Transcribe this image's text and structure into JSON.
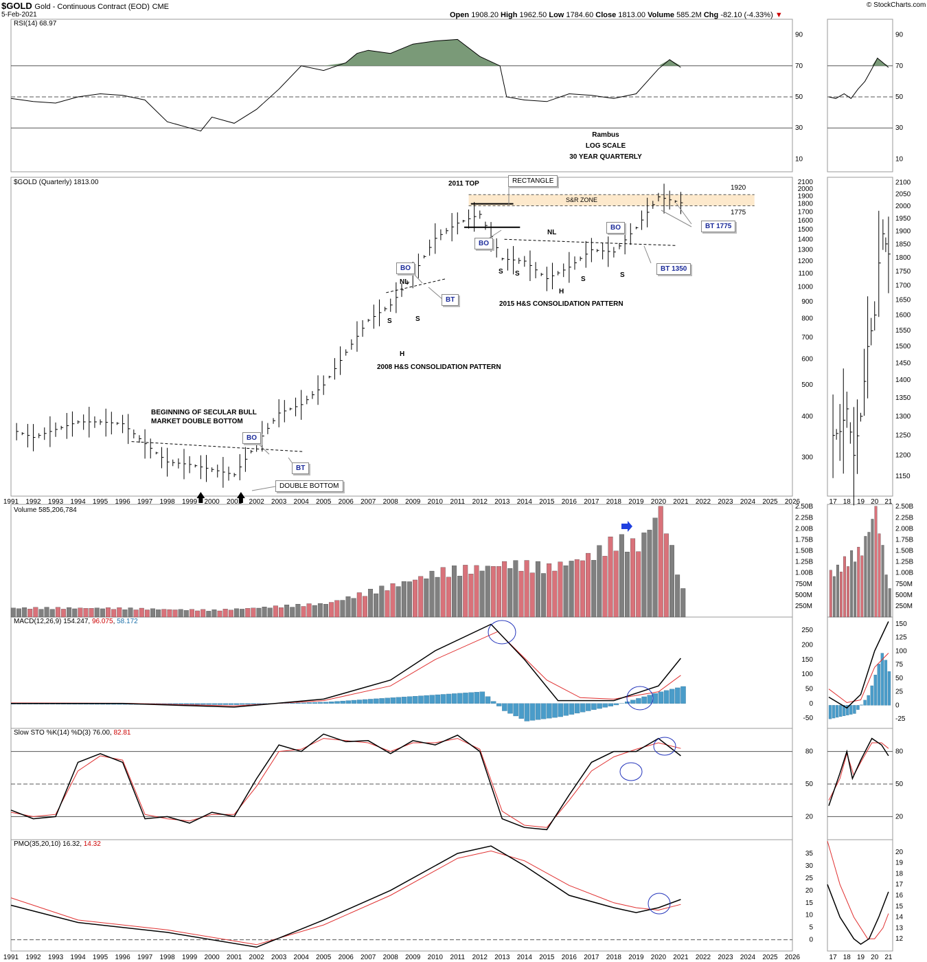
{
  "header": {
    "symbol": "$GOLD",
    "description": "Gold - Continuous Contract (EOD)",
    "exchange": "CME",
    "date": "5-Feb-2021",
    "open_label": "Open",
    "open": "1908.20",
    "high_label": "High",
    "high": "1962.50",
    "low_label": "Low",
    "low": "1784.60",
    "close_label": "Close",
    "close": "1813.00",
    "volume_label": "Volume",
    "volume": "585.2M",
    "chg_label": "Chg",
    "chg": "-82.10 (-4.33%)",
    "source": "© StockCharts.com"
  },
  "panels": {
    "rsi": "RSI(14) 68.97",
    "price": "$GOLD (Quarterly) 1813.00",
    "volume": "Volume 585,206,784",
    "macd_name": "MACD(12,26,9)",
    "macd_v1": "154.247",
    "macd_v2": "96.075",
    "macd_v3": "58.172",
    "sto_name": "Slow STO %K(14) %D(3)",
    "sto_v1": "76.00",
    "sto_v2": "82.81",
    "pmo_name": "PMO(35,20,10)",
    "pmo_v1": "16.32",
    "pmo_v2": "14.32"
  },
  "annotations": {
    "rambus": "Rambus",
    "log_scale": "LOG SCALE",
    "quarterly": "30 YEAR QUARTERLY",
    "top_2011": "2011 TOP",
    "rectangle": "RECTANGLE",
    "sr_zone": "S&R ZONE",
    "level_1920": "1920",
    "level_1775": "1775",
    "bt_1775": "BT 1775",
    "bt_1350": "BT 1350",
    "nl": "NL",
    "bo": "BO",
    "bt": "BT",
    "s": "S",
    "h": "H",
    "hs_2015": "2015 H&S CONSOLIDATION PATTERN",
    "hs_2008": "2008 H&S CONSOLIDATION PATTERN",
    "secular_1": "BEGINNING OF SECULAR BULL",
    "secular_2": "MARKET DOUBLE BOTTOM",
    "double_bottom": "DOUBLE BOTTOM"
  },
  "colors": {
    "rsi_fill": "#7a9a78",
    "sr_zone": "#fde9cc",
    "vol_up": "#808080",
    "vol_down": "#d9727a",
    "hist": "#4a9cc9",
    "signal": "#e03030",
    "circle": "#2233bb",
    "arrow": "#1f3fe0"
  },
  "chart_data": {
    "type": "line",
    "main_x_axis": {
      "start": 1991,
      "end": 2026,
      "ticks": [
        "1991",
        "1992",
        "1993",
        "1994",
        "1995",
        "1996",
        "1997",
        "1998",
        "1999",
        "2000",
        "2001",
        "2002",
        "2003",
        "2004",
        "2005",
        "2006",
        "2007",
        "2008",
        "2009",
        "2010",
        "2011",
        "2012",
        "2013",
        "2014",
        "2015",
        "2016",
        "2017",
        "2018",
        "2019",
        "2020",
        "2021",
        "2022",
        "2023",
        "2024",
        "2025",
        "2026"
      ]
    },
    "inset_x_axis": {
      "start": 2016.6,
      "end": 2021.3,
      "ticks": [
        "17",
        "18",
        "19",
        "20",
        "21"
      ]
    },
    "rsi": {
      "ticks": [
        "10",
        "30",
        "50",
        "70",
        "90"
      ],
      "series": [
        [
          1991,
          49
        ],
        [
          1992,
          47
        ],
        [
          1993,
          46
        ],
        [
          1994,
          50
        ],
        [
          1995,
          52
        ],
        [
          1996,
          51
        ],
        [
          1997,
          48
        ],
        [
          1998,
          34
        ],
        [
          1999,
          30
        ],
        [
          1999.5,
          28
        ],
        [
          2000,
          37
        ],
        [
          2001,
          33
        ],
        [
          2002,
          42
        ],
        [
          2003,
          55
        ],
        [
          2004,
          70
        ],
        [
          2005,
          67
        ],
        [
          2006,
          72
        ],
        [
          2006.5,
          78
        ],
        [
          2007,
          80
        ],
        [
          2008,
          78
        ],
        [
          2009,
          84
        ],
        [
          2010,
          86
        ],
        [
          2011,
          87
        ],
        [
          2012,
          76
        ],
        [
          2012.9,
          70
        ],
        [
          2013.2,
          50
        ],
        [
          2014,
          48
        ],
        [
          2015,
          47
        ],
        [
          2016,
          52
        ],
        [
          2017,
          51
        ],
        [
          2018,
          49
        ],
        [
          2019,
          52
        ],
        [
          2020,
          68
        ],
        [
          2020.5,
          74
        ],
        [
          2021,
          68.97
        ]
      ],
      "inset": [
        [
          2016.7,
          50
        ],
        [
          2017.2,
          49
        ],
        [
          2017.8,
          52
        ],
        [
          2018.3,
          49
        ],
        [
          2018.8,
          55
        ],
        [
          2019.3,
          60
        ],
        [
          2019.8,
          68
        ],
        [
          2020.2,
          75
        ],
        [
          2020.6,
          72
        ],
        [
          2021,
          68.97
        ]
      ]
    },
    "price": {
      "scale": "log",
      "main_ticks": [
        "300",
        "400",
        "500",
        "600",
        "700",
        "800",
        "900",
        "1000",
        "1100",
        "1200",
        "1300",
        "1400",
        "1500",
        "1600",
        "1700",
        "1800",
        "1900",
        "2000",
        "2100"
      ],
      "inset_ticks": [
        "1150",
        "1200",
        "1250",
        "1300",
        "1350",
        "1400",
        "1450",
        "1500",
        "1550",
        "1600",
        "1650",
        "1700",
        "1750",
        "1800",
        "1850",
        "1900",
        "1950",
        "2000",
        "2050",
        "2100"
      ],
      "series": [
        [
          1991,
          365
        ],
        [
          1992,
          345
        ],
        [
          1993,
          365
        ],
        [
          1994,
          385
        ],
        [
          1995,
          385
        ],
        [
          1996,
          380
        ],
        [
          1997,
          330
        ],
        [
          1998,
          290
        ],
        [
          1999,
          285
        ],
        [
          2000,
          275
        ],
        [
          2001,
          265
        ],
        [
          2002,
          330
        ],
        [
          2003,
          410
        ],
        [
          2004,
          435
        ],
        [
          2005,
          500
        ],
        [
          2006,
          630
        ],
        [
          2007,
          790
        ],
        [
          2008,
          880
        ],
        [
          2009,
          1090
        ],
        [
          2010,
          1410
        ],
        [
          2011,
          1570
        ],
        [
          2012,
          1670
        ],
        [
          2013,
          1220
        ],
        [
          2014,
          1200
        ],
        [
          2015,
          1060
        ],
        [
          2016,
          1150
        ],
        [
          2017,
          1300
        ],
        [
          2018,
          1280
        ],
        [
          2019,
          1520
        ],
        [
          2020,
          1890
        ],
        [
          2021,
          1813
        ]
      ],
      "inset": [
        [
          2016.7,
          1200
        ],
        [
          2017,
          1250
        ],
        [
          2017.5,
          1260
        ],
        [
          2018,
          1320
        ],
        [
          2018.5,
          1200
        ],
        [
          2019,
          1300
        ],
        [
          2019.5,
          1500
        ],
        [
          2020,
          1600
        ],
        [
          2020.3,
          1780
        ],
        [
          2020.6,
          1890
        ],
        [
          2021,
          1813
        ]
      ]
    },
    "volume": {
      "ticks": [
        "250M",
        "500M",
        "750M",
        "1.00B",
        "1.25B",
        "1.50B",
        "1.75B",
        "2.00B",
        "2.25B",
        "2.50B"
      ],
      "series": [
        [
          1995,
          0.2
        ],
        [
          2000,
          0.15
        ],
        [
          2005,
          0.3
        ],
        [
          2008,
          0.7
        ],
        [
          2010,
          1.0
        ],
        [
          2012,
          1.1
        ],
        [
          2013,
          1.2
        ],
        [
          2015,
          1.1
        ],
        [
          2017,
          1.4
        ],
        [
          2018,
          1.7
        ],
        [
          2019,
          1.6
        ],
        [
          2020,
          2.45
        ],
        [
          2021,
          0.585
        ]
      ],
      "inset": [
        [
          2017,
          1.0
        ],
        [
          2018,
          1.3
        ],
        [
          2019,
          1.5
        ],
        [
          2020,
          2.45
        ],
        [
          2021,
          0.585
        ]
      ]
    },
    "macd": {
      "ticks": [
        "-50",
        "0",
        "50",
        "100",
        "150",
        "200",
        "250"
      ],
      "inset_ticks": [
        "-25",
        "0",
        "25",
        "50",
        "75",
        "100",
        "125",
        "150"
      ],
      "macd": [
        [
          1991,
          0
        ],
        [
          1996,
          0
        ],
        [
          2001,
          -12
        ],
        [
          2005,
          15
        ],
        [
          2008,
          80
        ],
        [
          2010,
          180
        ],
        [
          2012.5,
          270
        ],
        [
          2014,
          150
        ],
        [
          2015.5,
          10
        ],
        [
          2018,
          10
        ],
        [
          2020,
          60
        ],
        [
          2021,
          154.247
        ]
      ],
      "signal": [
        [
          1991,
          2
        ],
        [
          1996,
          1
        ],
        [
          2001,
          -8
        ],
        [
          2005,
          10
        ],
        [
          2008,
          60
        ],
        [
          2010,
          150
        ],
        [
          2012.8,
          245
        ],
        [
          2015,
          80
        ],
        [
          2016.5,
          20
        ],
        [
          2018,
          15
        ],
        [
          2020,
          40
        ],
        [
          2021,
          96.075
        ]
      ],
      "hist": [
        [
          1991,
          -2
        ],
        [
          2001,
          -4
        ],
        [
          2005,
          5
        ],
        [
          2010,
          30
        ],
        [
          2012,
          40
        ],
        [
          2013,
          -25
        ],
        [
          2014,
          -60
        ],
        [
          2015.5,
          -45
        ],
        [
          2018,
          -5
        ],
        [
          2020,
          40
        ],
        [
          2021,
          58.172
        ]
      ]
    },
    "stochastic": {
      "ticks": [
        "20",
        "50",
        "80"
      ],
      "k": [
        [
          1991,
          26
        ],
        [
          1992,
          18
        ],
        [
          1993,
          20
        ],
        [
          1994,
          70
        ],
        [
          1995,
          78
        ],
        [
          1996,
          70
        ],
        [
          1997,
          18
        ],
        [
          1998,
          20
        ],
        [
          1999,
          14
        ],
        [
          2000,
          24
        ],
        [
          2001,
          20
        ],
        [
          2002,
          55
        ],
        [
          2003,
          86
        ],
        [
          2004,
          80
        ],
        [
          2005,
          96
        ],
        [
          2006,
          89
        ],
        [
          2007,
          90
        ],
        [
          2008,
          78
        ],
        [
          2009,
          90
        ],
        [
          2010,
          86
        ],
        [
          2011,
          95
        ],
        [
          2012,
          80
        ],
        [
          2013,
          18
        ],
        [
          2014,
          10
        ],
        [
          2015,
          8
        ],
        [
          2016,
          40
        ],
        [
          2017,
          70
        ],
        [
          2018,
          80
        ],
        [
          2019,
          80
        ],
        [
          2020,
          92
        ],
        [
          2021,
          76
        ]
      ],
      "d": [
        [
          1991,
          24
        ],
        [
          1992,
          20
        ],
        [
          1993,
          22
        ],
        [
          1994,
          62
        ],
        [
          1995,
          76
        ],
        [
          1996,
          72
        ],
        [
          1997,
          22
        ],
        [
          1998,
          18
        ],
        [
          1999,
          16
        ],
        [
          2000,
          22
        ],
        [
          2001,
          22
        ],
        [
          2002,
          48
        ],
        [
          2003,
          80
        ],
        [
          2004,
          82
        ],
        [
          2005,
          92
        ],
        [
          2006,
          90
        ],
        [
          2007,
          88
        ],
        [
          2008,
          80
        ],
        [
          2009,
          88
        ],
        [
          2010,
          88
        ],
        [
          2011,
          92
        ],
        [
          2012,
          82
        ],
        [
          2013,
          25
        ],
        [
          2014,
          12
        ],
        [
          2015,
          10
        ],
        [
          2016,
          35
        ],
        [
          2017,
          62
        ],
        [
          2018,
          75
        ],
        [
          2019,
          82
        ],
        [
          2020,
          88
        ],
        [
          2021,
          82.81
        ]
      ]
    },
    "pmo": {
      "ticks": [
        "0",
        "5",
        "10",
        "15",
        "20",
        "25",
        "30",
        "35"
      ],
      "inset_ticks": [
        "12",
        "13",
        "14",
        "15",
        "16",
        "17",
        "18",
        "19",
        "20"
      ],
      "pmo": [
        [
          1991,
          14
        ],
        [
          1994,
          7
        ],
        [
          1998,
          3
        ],
        [
          2002,
          -3
        ],
        [
          2005,
          8
        ],
        [
          2008,
          20
        ],
        [
          2011,
          35
        ],
        [
          2012.5,
          38
        ],
        [
          2014,
          30
        ],
        [
          2016,
          18
        ],
        [
          2018,
          13
        ],
        [
          2019,
          11
        ],
        [
          2020,
          13
        ],
        [
          2021,
          16.32
        ]
      ],
      "signal": [
        [
          1991,
          17
        ],
        [
          1994,
          8
        ],
        [
          1998,
          4
        ],
        [
          2002,
          -2
        ],
        [
          2005,
          6
        ],
        [
          2008,
          18
        ],
        [
          2011,
          33
        ],
        [
          2012.5,
          36
        ],
        [
          2014,
          32
        ],
        [
          2016,
          22
        ],
        [
          2018,
          15
        ],
        [
          2019,
          13
        ],
        [
          2020,
          12
        ],
        [
          2021,
          14.32
        ]
      ]
    }
  }
}
